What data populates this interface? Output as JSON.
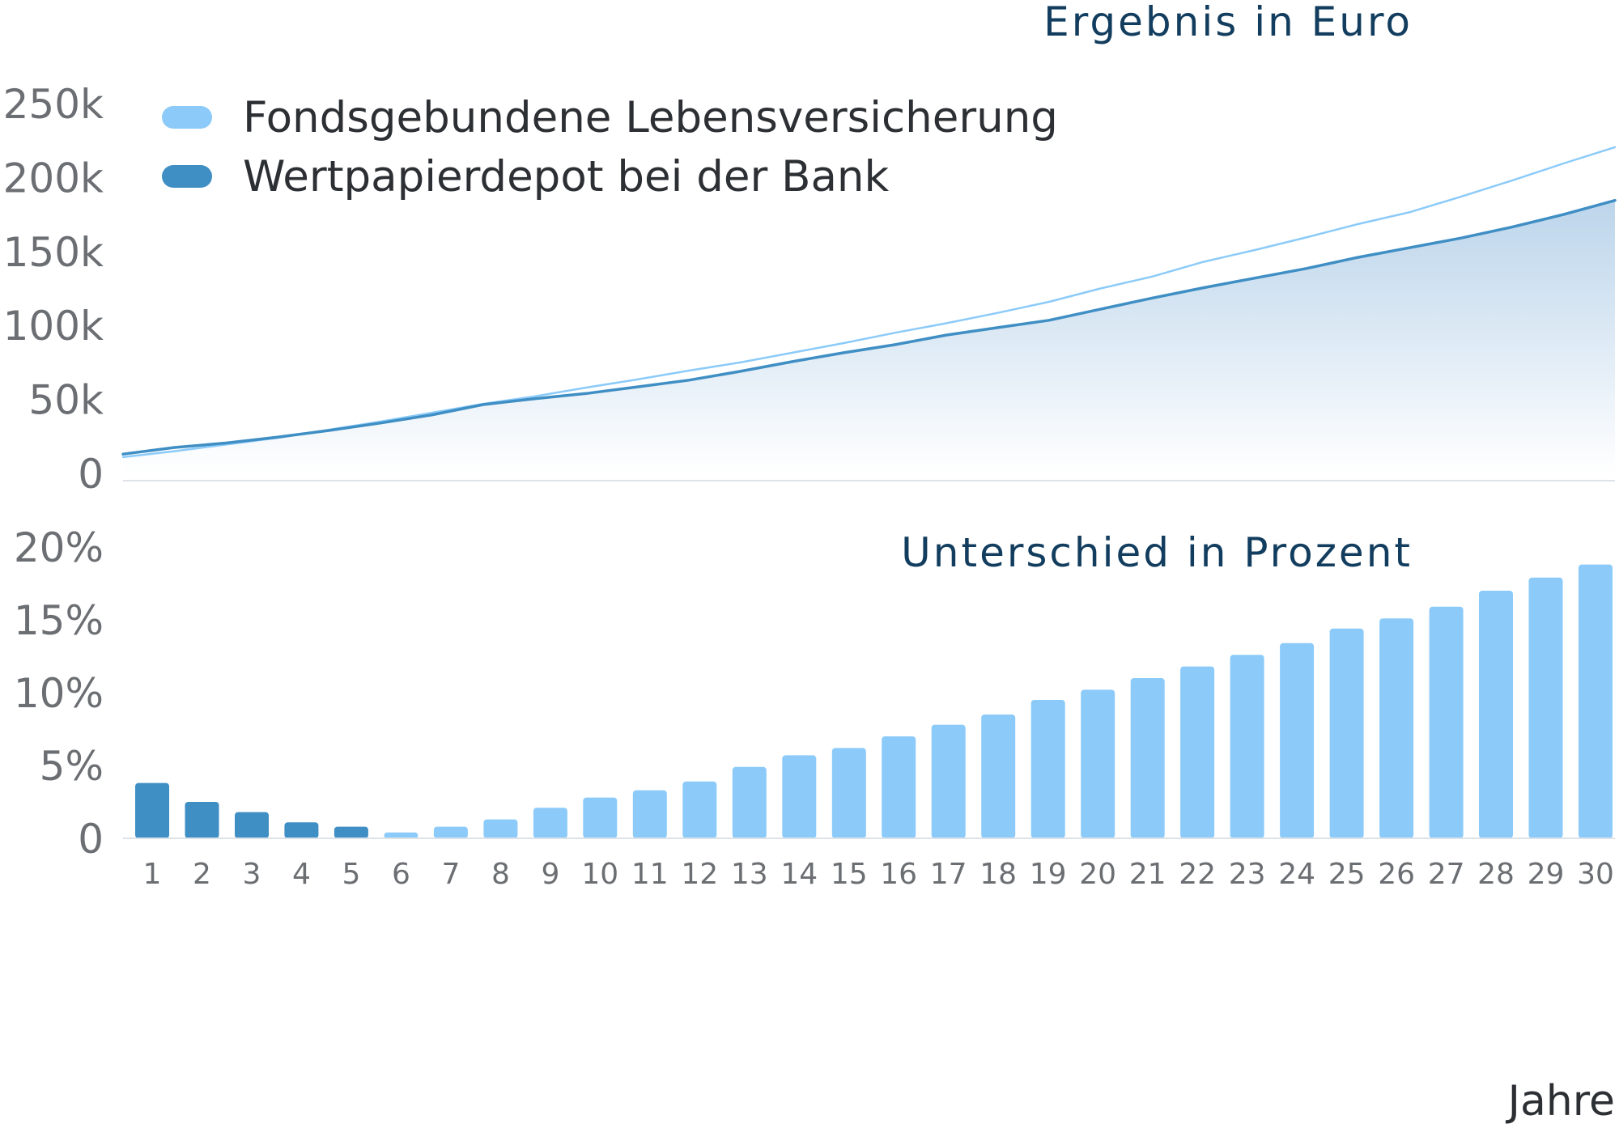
{
  "chart_data": [
    {
      "type": "line",
      "title": "Ergebnis in Euro",
      "x": [
        1,
        2,
        3,
        4,
        5,
        6,
        7,
        8,
        9,
        10,
        11,
        12,
        13,
        14,
        15,
        16,
        17,
        18,
        19,
        20,
        21,
        22,
        23,
        24,
        25,
        26,
        27,
        28,
        29,
        30
      ],
      "ylim": [
        0,
        250000
      ],
      "yticks": [
        0,
        50000,
        100000,
        150000,
        200000,
        250000
      ],
      "ytick_labels": [
        "0",
        "50k",
        "100k",
        "150k",
        "200k",
        "250k"
      ],
      "grid": false,
      "legend": "top-left",
      "series": [
        {
          "name": "Fondsgebundene Lebensversicherung",
          "color": "#8ccbf9",
          "values": [
            11000,
            15000,
            19500,
            24000,
            29500,
            35000,
            41000,
            47000,
            52000,
            58000,
            63500,
            69500,
            75000,
            81500,
            88000,
            95000,
            101500,
            108500,
            116000,
            125000,
            133000,
            143000,
            151000,
            159500,
            168500,
            176500,
            187000,
            198000,
            209500,
            220500
          ]
        },
        {
          "name": "Wertpapierdepot bei der Bank",
          "color": "#3f8ec4",
          "fill": true,
          "values": [
            13000,
            17500,
            20500,
            24500,
            29000,
            34000,
            39500,
            46500,
            50500,
            54000,
            58500,
            63000,
            69000,
            75500,
            81500,
            87000,
            93500,
            98500,
            103500,
            111000,
            118500,
            125500,
            132000,
            138500,
            146000,
            152500,
            159000,
            166500,
            175000,
            184500
          ]
        }
      ]
    },
    {
      "type": "bar",
      "title": "Unterschied in Prozent",
      "categories": [
        "1",
        "2",
        "3",
        "4",
        "5",
        "6",
        "7",
        "8",
        "9",
        "10",
        "11",
        "12",
        "13",
        "14",
        "15",
        "16",
        "17",
        "18",
        "19",
        "20",
        "21",
        "22",
        "23",
        "24",
        "25",
        "26",
        "27",
        "28",
        "29",
        "30"
      ],
      "values": [
        3.8,
        2.5,
        1.8,
        1.1,
        0.8,
        0.4,
        0.8,
        1.3,
        2.1,
        2.8,
        3.3,
        3.9,
        4.9,
        5.7,
        6.2,
        7.0,
        7.8,
        8.5,
        9.5,
        10.2,
        11.0,
        11.8,
        12.6,
        13.4,
        14.4,
        15.1,
        15.9,
        17.0,
        17.9,
        18.8
      ],
      "bar_colors": [
        "#3f8ec4",
        "#3f8ec4",
        "#3f8ec4",
        "#3f8ec4",
        "#3f8ec4",
        "#8ccbf9",
        "#8ccbf9",
        "#8ccbf9",
        "#8ccbf9",
        "#8ccbf9",
        "#8ccbf9",
        "#8ccbf9",
        "#8ccbf9",
        "#8ccbf9",
        "#8ccbf9",
        "#8ccbf9",
        "#8ccbf9",
        "#8ccbf9",
        "#8ccbf9",
        "#8ccbf9",
        "#8ccbf9",
        "#8ccbf9",
        "#8ccbf9",
        "#8ccbf9",
        "#8ccbf9",
        "#8ccbf9",
        "#8ccbf9",
        "#8ccbf9",
        "#8ccbf9",
        "#8ccbf9"
      ],
      "ylim": [
        0,
        20
      ],
      "yticks": [
        0,
        5,
        10,
        15,
        20
      ],
      "ytick_labels": [
        "0",
        "5%",
        "10%",
        "15%",
        "20%"
      ],
      "xlabel": "Jahre",
      "grid": false
    }
  ],
  "colors": {
    "title": "#123d5e",
    "tick": "#6b6e72",
    "legend_text": "#2c2f33",
    "axis_line": "#dde3e8",
    "fill_top": "#b9d3ea",
    "fill_bottom": "#ffffff"
  }
}
